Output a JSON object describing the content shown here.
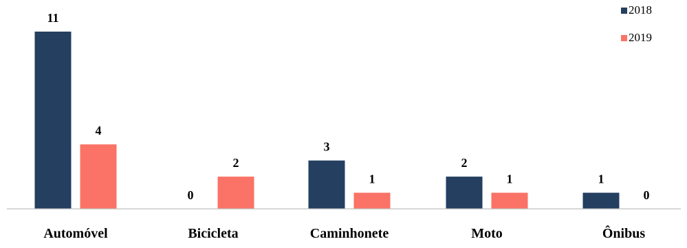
{
  "chart_data": {
    "type": "bar",
    "categories": [
      "Automóvel",
      "Bicicleta",
      "Caminhonete",
      "Moto",
      "Ônibus"
    ],
    "series": [
      {
        "name": "2018",
        "color": "#243F60",
        "values": [
          11,
          0,
          3,
          2,
          1
        ]
      },
      {
        "name": "2019",
        "color": "#FA7366",
        "values": [
          4,
          2,
          1,
          1,
          0
        ]
      }
    ],
    "title": "",
    "xlabel": "",
    "ylabel": "",
    "ylim": [
      0,
      11
    ],
    "grid": false,
    "legend_position": "top-right",
    "data_labels": true
  }
}
